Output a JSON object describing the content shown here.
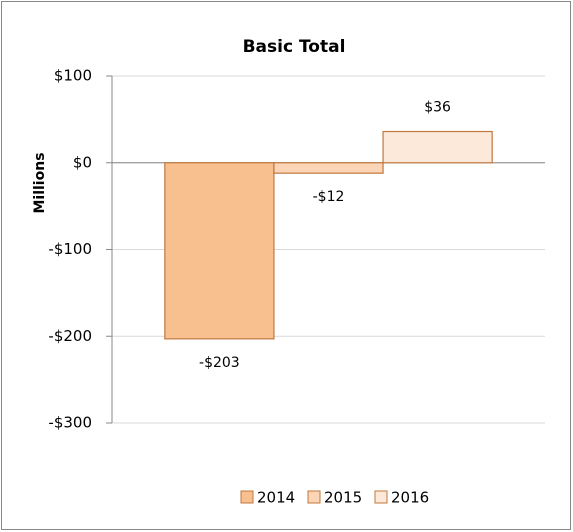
{
  "chart_data": {
    "type": "bar",
    "title": "Basic Total",
    "y_label": "Millions",
    "categories": [
      null
    ],
    "series": [
      {
        "name": "2014",
        "color": "#f9c08f",
        "values": [
          -203
        ],
        "value_labels": [
          "-$203"
        ]
      },
      {
        "name": "2015",
        "color": "#fbd5b5",
        "values": [
          -12
        ],
        "value_labels": [
          "-$12"
        ]
      },
      {
        "name": "2016",
        "color": "#fde9d9",
        "values": [
          36
        ],
        "value_labels": [
          "$36"
        ]
      }
    ],
    "ylim": [
      -300,
      100
    ],
    "yticks": [
      {
        "value": -300,
        "label": "-$300"
      },
      {
        "value": -200,
        "label": "-$200"
      },
      {
        "value": -100,
        "label": "-$100"
      },
      {
        "value": 0,
        "label": "$0"
      },
      {
        "value": 100,
        "label": "$100"
      }
    ],
    "grid": true,
    "legend": "bottom"
  }
}
